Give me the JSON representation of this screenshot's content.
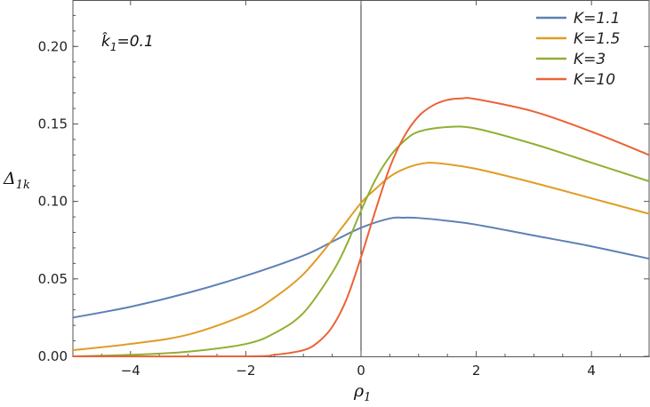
{
  "chart_data": {
    "type": "line",
    "xlabel": "ρ",
    "xlabel_sub": "1",
    "ylabel": "Δ",
    "ylabel_sub": "1k",
    "xlim": [
      -5,
      5
    ],
    "ylim": [
      0,
      0.23
    ],
    "x_ticks": [
      -4,
      -2,
      0,
      2,
      4
    ],
    "x_tick_labels": [
      "−4",
      "−2",
      "0",
      "2",
      "4"
    ],
    "y_ticks": [
      0,
      0.05,
      0.1,
      0.15,
      0.2
    ],
    "y_tick_labels": [
      "0.00",
      "0.05",
      "0.10",
      "0.15",
      "0.20"
    ],
    "annotation": {
      "symbol": "k̂",
      "sub": "1",
      "text": "=0.1"
    },
    "legend_position": "top-right",
    "series": [
      {
        "name": "K=1.1",
        "color": "#5e81b5",
        "x": [
          -5,
          -4,
          -3,
          -2,
          -1,
          -0.5,
          0,
          0.5,
          0.75,
          1,
          1.5,
          2,
          3,
          4,
          5
        ],
        "y": [
          0.025,
          0.032,
          0.041,
          0.052,
          0.065,
          0.074,
          0.083,
          0.089,
          0.0895,
          0.0893,
          0.0875,
          0.085,
          0.078,
          0.071,
          0.063
        ]
      },
      {
        "name": "K=1.5",
        "color": "#e19c24",
        "x": [
          -5,
          -4,
          -3,
          -2,
          -1.5,
          -1,
          -0.5,
          0,
          0.25,
          0.5,
          0.75,
          1,
          1.2,
          1.5,
          2,
          3,
          4,
          5
        ],
        "y": [
          0.004,
          0.008,
          0.014,
          0.027,
          0.038,
          0.053,
          0.075,
          0.099,
          0.108,
          0.116,
          0.121,
          0.124,
          0.125,
          0.124,
          0.121,
          0.112,
          0.102,
          0.092
        ]
      },
      {
        "name": "K=3",
        "color": "#8fb032",
        "x": [
          -5,
          -4,
          -3,
          -2,
          -1.5,
          -1,
          -0.5,
          -0.25,
          0,
          0.25,
          0.5,
          0.75,
          1,
          1.5,
          2,
          3,
          4,
          5
        ],
        "y": [
          0.0,
          0.001,
          0.003,
          0.008,
          0.015,
          0.028,
          0.054,
          0.072,
          0.094,
          0.114,
          0.129,
          0.139,
          0.145,
          0.148,
          0.147,
          0.137,
          0.125,
          0.113
        ]
      },
      {
        "name": "K=10",
        "color": "#eb6235",
        "x": [
          -5,
          -2,
          -1.5,
          -1,
          -0.75,
          -0.5,
          -0.25,
          0,
          0.25,
          0.5,
          0.75,
          1,
          1.25,
          1.5,
          1.75,
          2,
          3,
          4,
          5
        ],
        "y": [
          0.0,
          0.0,
          0.001,
          0.004,
          0.009,
          0.019,
          0.037,
          0.064,
          0.094,
          0.122,
          0.142,
          0.155,
          0.162,
          0.1655,
          0.1665,
          0.166,
          0.158,
          0.145,
          0.13
        ]
      }
    ]
  }
}
